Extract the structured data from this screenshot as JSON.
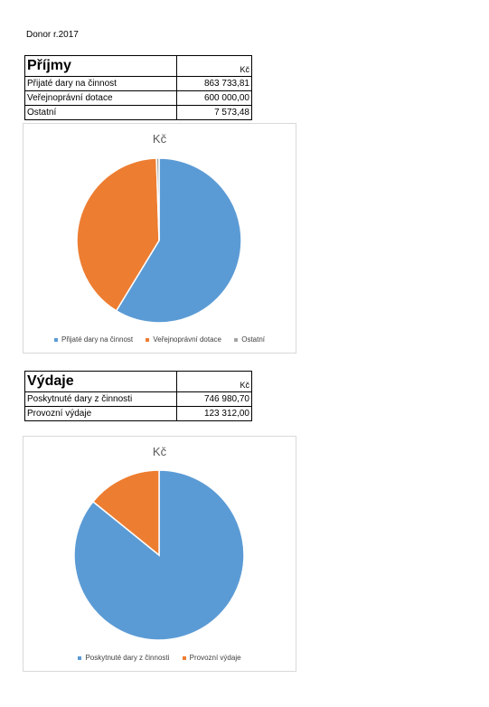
{
  "document": {
    "title": "Donor r.2017"
  },
  "income": {
    "heading": "Příjmy",
    "currency": "Kč",
    "rows": [
      {
        "label": "Přijaté dary na činnost",
        "value": "863 733,81"
      },
      {
        "label": "Veřejnoprávní dotace",
        "value": "600 000,00"
      },
      {
        "label": "Ostatní",
        "value": "7 573,48"
      }
    ]
  },
  "expenses": {
    "heading": "Výdaje",
    "currency": "Kč",
    "rows": [
      {
        "label": "Poskytnuté dary z činnosti",
        "value": "746 980,70"
      },
      {
        "label": "Provozní výdaje",
        "value": "123 312,00"
      }
    ]
  },
  "chart_data": [
    {
      "type": "pie",
      "title": "Kč",
      "categories": [
        "Přijaté dary na činnost",
        "Veřejnoprávní dotace",
        "Ostatní"
      ],
      "values": [
        863733.81,
        600000.0,
        7573.48
      ],
      "colors": [
        "#5b9bd5",
        "#ed7d31",
        "#a5a5a5"
      ],
      "legend": "bottom"
    },
    {
      "type": "pie",
      "title": "Kč",
      "categories": [
        "Poskytnuté dary z činnosti",
        "Provozní výdaje"
      ],
      "values": [
        746980.7,
        123312.0
      ],
      "colors": [
        "#5b9bd5",
        "#ed7d31"
      ],
      "legend": "bottom"
    }
  ]
}
